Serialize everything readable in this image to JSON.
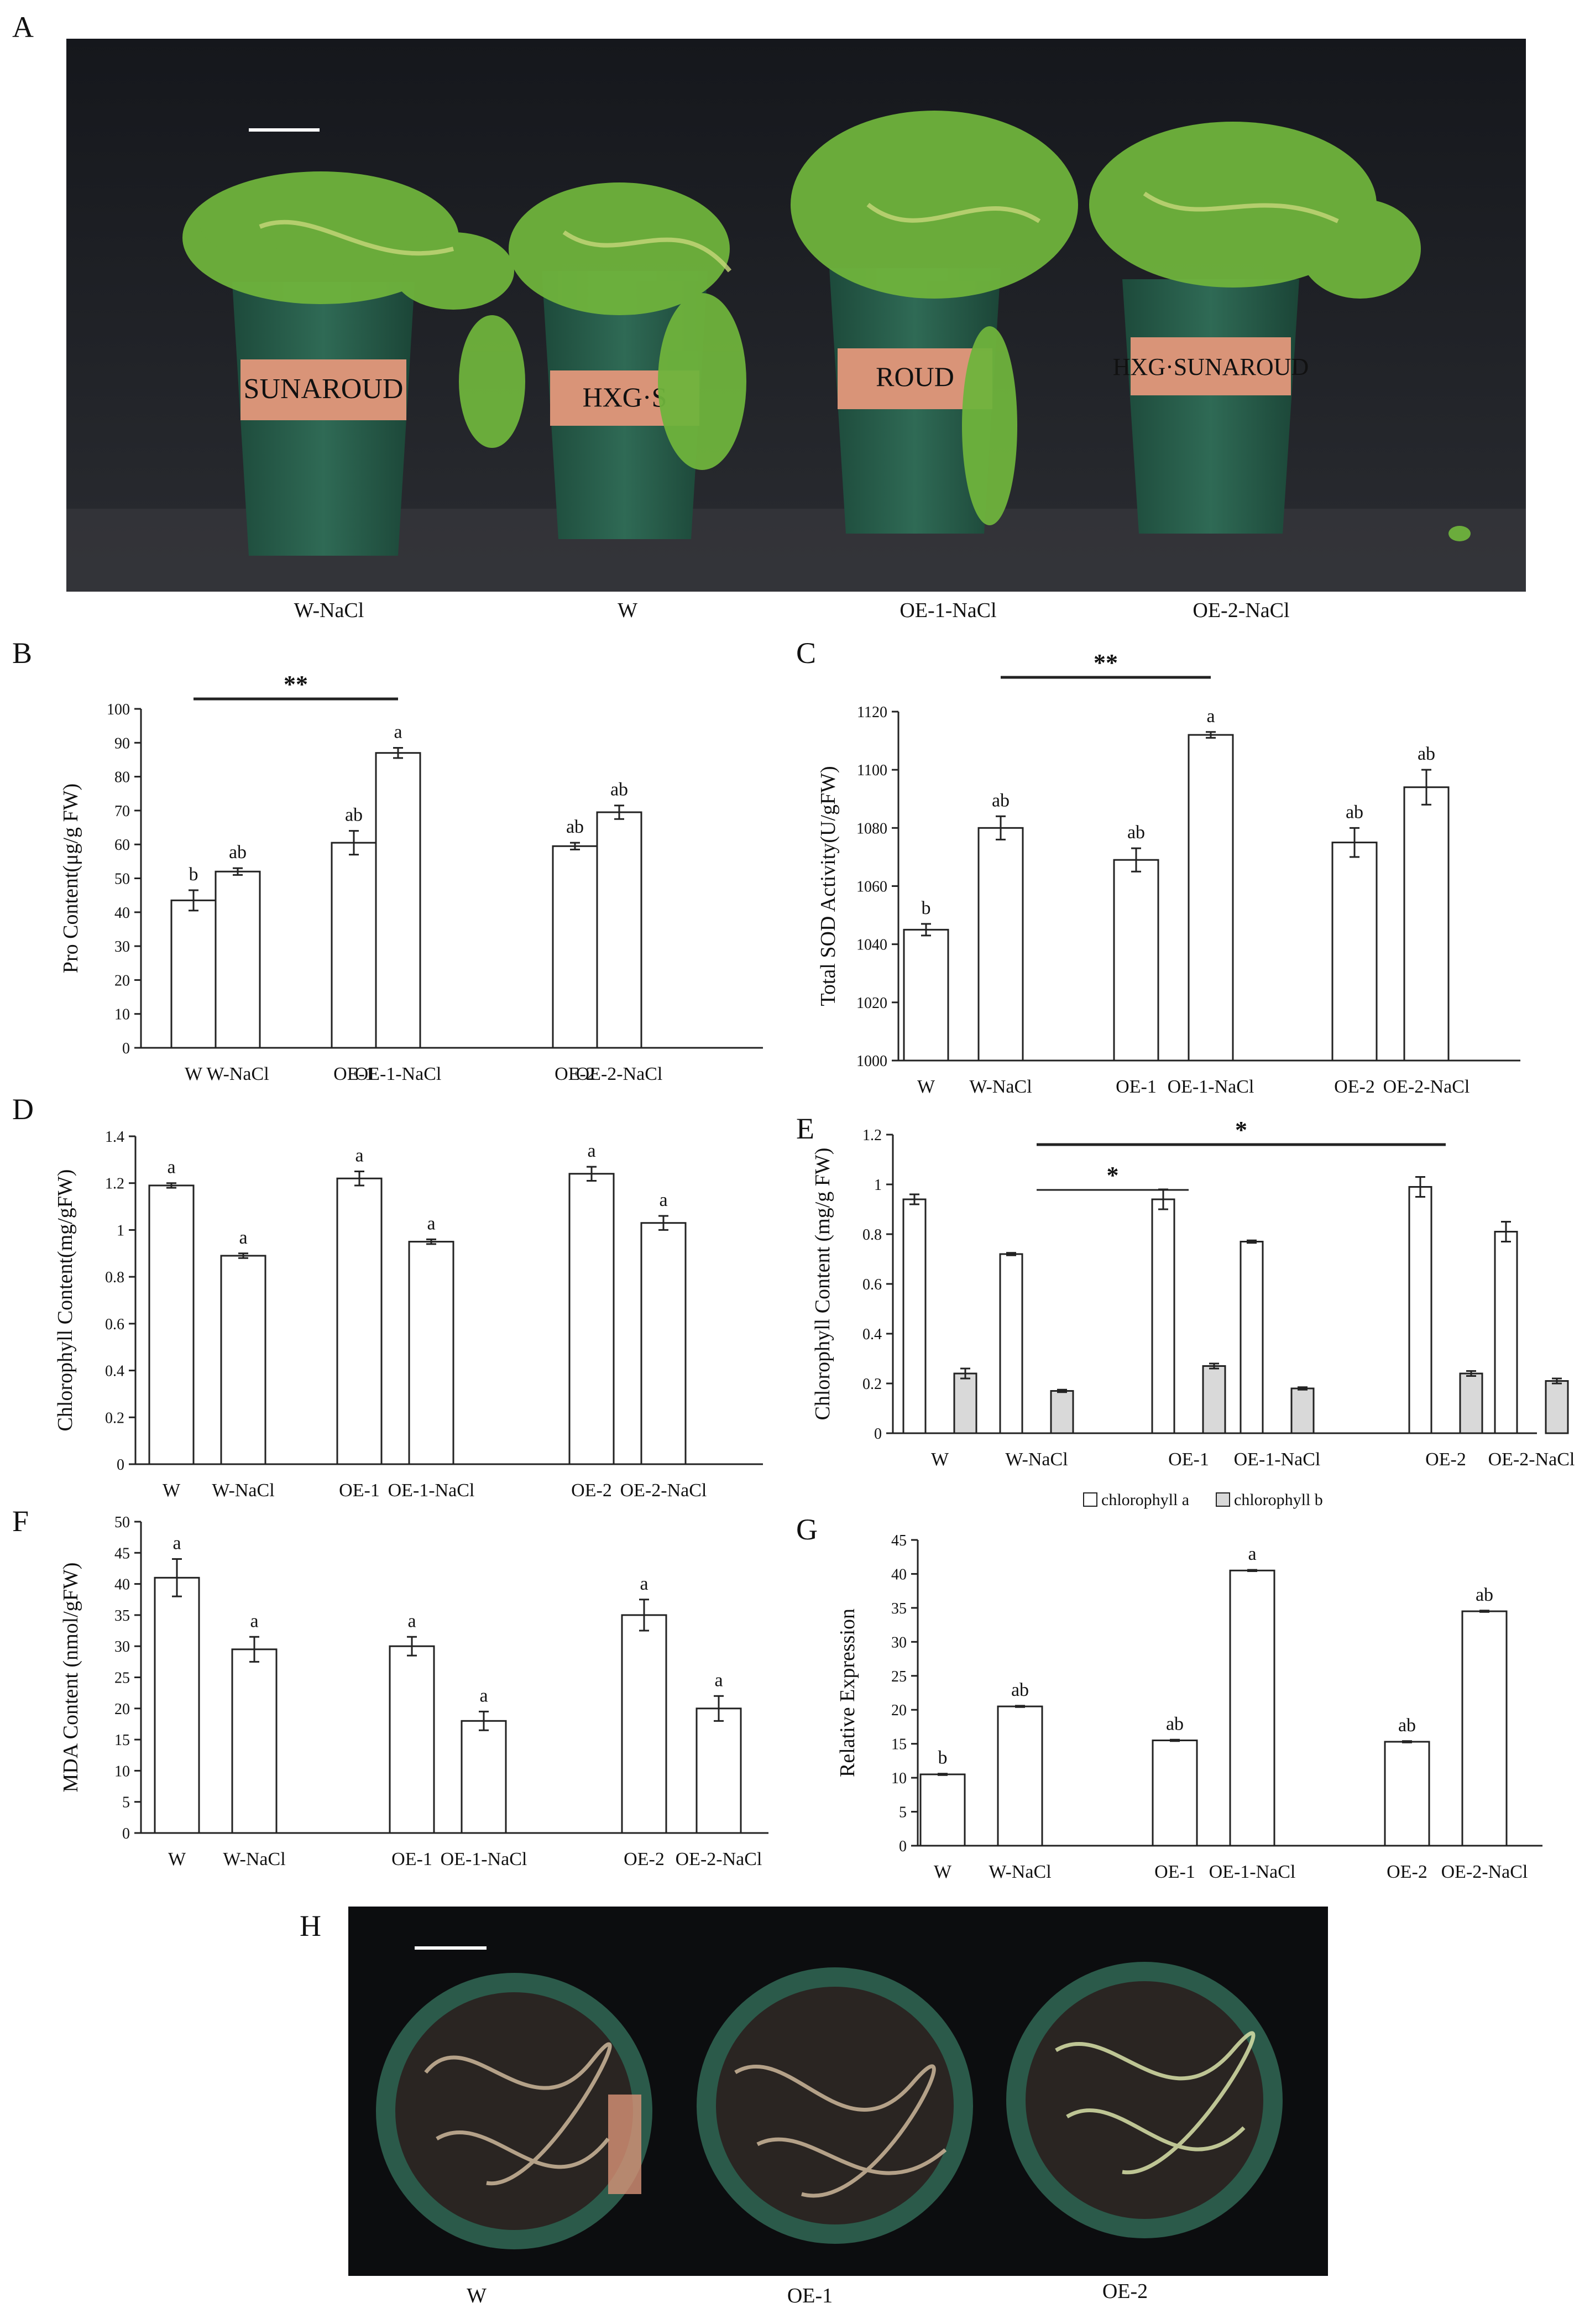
{
  "panels": {
    "A": {
      "letter": "A",
      "captions": [
        "W-NaCl",
        "W",
        "OE-1-NaCl",
        "OE-2-NaCl"
      ],
      "pot_labels": [
        "SUNAROUD",
        "HXG·S",
        "ROUD",
        "HXG·SUNAROUD"
      ]
    },
    "H": {
      "letter": "H",
      "captions": [
        "W",
        "OE-1",
        "OE-2"
      ]
    }
  },
  "chart_data": [
    {
      "id": "B",
      "letter": "B",
      "type": "bar",
      "ylabel": "Pro  Content(μg/g FW)",
      "ylim": [
        0,
        100
      ],
      "yticks": [
        0,
        10,
        20,
        30,
        40,
        50,
        60,
        70,
        80,
        90,
        100
      ],
      "categories": [
        "W",
        "W-NaCl",
        "OE-1",
        "OE-1-NaCl",
        "OE-2",
        "OE-2-NaCl"
      ],
      "values": [
        43.5,
        52,
        60.5,
        87,
        59.5,
        69.5
      ],
      "errors": [
        3,
        1,
        3.5,
        1.5,
        1,
        2
      ],
      "letters": [
        "b",
        "ab",
        "ab",
        "a",
        "ab",
        "ab"
      ],
      "significance": [
        {
          "from": 0,
          "to": 3,
          "label": "**"
        }
      ]
    },
    {
      "id": "C",
      "letter": "C",
      "type": "bar",
      "ylabel": "Total SOD Activity(U/gFW)",
      "ylim": [
        1000,
        1120
      ],
      "yticks": [
        1000,
        1020,
        1040,
        1060,
        1080,
        1100,
        1120
      ],
      "categories": [
        "W",
        "W-NaCl",
        "OE-1",
        "OE-1-NaCl",
        "OE-2",
        "OE-2-NaCl"
      ],
      "values": [
        1045,
        1080,
        1069,
        1112,
        1075,
        1094
      ],
      "errors": [
        2,
        4,
        4,
        1,
        5,
        6
      ],
      "letters": [
        "b",
        "ab",
        "ab",
        "a",
        "ab",
        "ab"
      ],
      "significance": [
        {
          "from": 1,
          "to": 3,
          "label": "**"
        }
      ]
    },
    {
      "id": "D",
      "letter": "D",
      "type": "bar",
      "ylabel": "Chlorophyll Content(mg/gFW)",
      "ylim": [
        0,
        1.4
      ],
      "yticks": [
        0,
        0.2,
        0.4,
        0.6,
        0.8,
        1,
        1.2,
        1.4
      ],
      "categories": [
        "W",
        "W-NaCl",
        "OE-1",
        "OE-1-NaCl",
        "OE-2",
        "OE-2-NaCl"
      ],
      "values": [
        1.19,
        0.89,
        1.22,
        0.95,
        1.24,
        1.03
      ],
      "errors": [
        0.01,
        0.01,
        0.03,
        0.01,
        0.03,
        0.03
      ],
      "letters": [
        "a",
        "a",
        "a",
        "a",
        "a",
        "a"
      ],
      "significance": []
    },
    {
      "id": "E",
      "letter": "E",
      "type": "bar",
      "ylabel": "Chlorophyll  Content (mg/g FW)",
      "ylim": [
        0,
        1.2
      ],
      "yticks": [
        0,
        0.2,
        0.4,
        0.6,
        0.8,
        1,
        1.2
      ],
      "categories": [
        "W",
        "W-NaCl",
        "OE-1",
        "OE-1-NaCl",
        "OE-2",
        "OE-2-NaCl"
      ],
      "series": [
        {
          "name": "chlorophyll a",
          "color": "#ffffff",
          "values": [
            0.94,
            0.72,
            0.94,
            0.77,
            0.99,
            0.81
          ],
          "errors": [
            0.02,
            0.005,
            0.04,
            0.005,
            0.04,
            0.04
          ]
        },
        {
          "name": "chlorophyll b",
          "color": "#d9d9d9",
          "values": [
            0.24,
            0.17,
            0.27,
            0.18,
            0.24,
            0.21
          ],
          "errors": [
            0.02,
            0.005,
            0.01,
            0.005,
            0.01,
            0.01
          ]
        }
      ],
      "legend": [
        "chlorophyll a",
        "chlorophyll b"
      ],
      "significance": [
        {
          "from": 1,
          "to": 4,
          "label": "*"
        },
        {
          "from": 1,
          "to": 2,
          "label": "*"
        }
      ]
    },
    {
      "id": "F",
      "letter": "F",
      "type": "bar",
      "ylabel": "MDA Content   (nmol/gFW)",
      "ylim": [
        0,
        50
      ],
      "yticks": [
        0,
        5,
        10,
        15,
        20,
        25,
        30,
        35,
        40,
        45,
        50
      ],
      "categories": [
        "W",
        "W-NaCl",
        "OE-1",
        "OE-1-NaCl",
        "OE-2",
        "OE-2-NaCl"
      ],
      "values": [
        41,
        29.5,
        30,
        18,
        35,
        20
      ],
      "errors": [
        3,
        2,
        1.5,
        1.5,
        2.5,
        2
      ],
      "letters": [
        "a",
        "a",
        "a",
        "a",
        "a",
        "a"
      ],
      "significance": []
    },
    {
      "id": "G",
      "letter": "G",
      "type": "bar",
      "ylabel": "Relative   Expression",
      "ylim": [
        0,
        45
      ],
      "yticks": [
        0,
        5,
        10,
        15,
        20,
        25,
        30,
        35,
        40,
        45
      ],
      "categories": [
        "W",
        "W-NaCl",
        "OE-1",
        "OE-1-NaCl",
        "OE-2",
        "OE-2-NaCl"
      ],
      "values": [
        10.5,
        20.5,
        15.5,
        40.5,
        15.3,
        34.5
      ],
      "errors": [
        0.1,
        0.1,
        0.1,
        0.1,
        0.1,
        0.1
      ],
      "letters": [
        "b",
        "ab",
        "ab",
        "a",
        "ab",
        "ab"
      ],
      "significance": []
    }
  ]
}
